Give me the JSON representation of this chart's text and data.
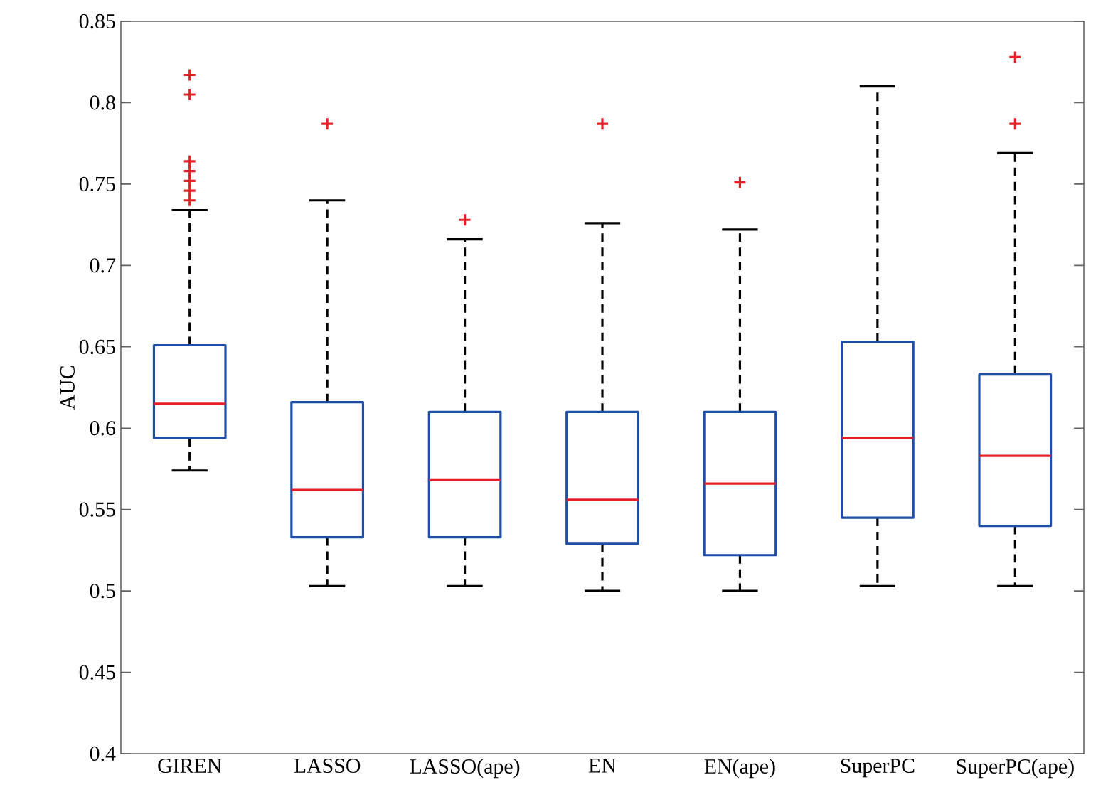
{
  "chart_data": {
    "type": "box",
    "ylabel": "AUC",
    "categories": [
      "GIREN",
      "LASSO",
      "LASSO(ape)",
      "EN",
      "EN(ape)",
      "SuperPC",
      "SuperPC(ape)"
    ],
    "boxes": [
      {
        "low": 0.574,
        "q1": 0.594,
        "median": 0.615,
        "q3": 0.651,
        "high": 0.734,
        "outliers": [
          0.817,
          0.805,
          0.764,
          0.758,
          0.752,
          0.746,
          0.74
        ]
      },
      {
        "low": 0.503,
        "q1": 0.533,
        "median": 0.562,
        "q3": 0.616,
        "high": 0.74,
        "outliers": [
          0.787
        ]
      },
      {
        "low": 0.503,
        "q1": 0.533,
        "median": 0.568,
        "q3": 0.61,
        "high": 0.716,
        "outliers": [
          0.728
        ]
      },
      {
        "low": 0.5,
        "q1": 0.529,
        "median": 0.556,
        "q3": 0.61,
        "high": 0.726,
        "outliers": [
          0.787
        ]
      },
      {
        "low": 0.5,
        "q1": 0.522,
        "median": 0.566,
        "q3": 0.61,
        "high": 0.722,
        "outliers": [
          0.751
        ]
      },
      {
        "low": 0.503,
        "q1": 0.545,
        "median": 0.594,
        "q3": 0.653,
        "high": 0.81
      },
      {
        "low": 0.503,
        "q1": 0.54,
        "median": 0.583,
        "q3": 0.633,
        "high": 0.769,
        "outliers": [
          0.828,
          0.787
        ]
      }
    ],
    "color": "#1f4ea6",
    "ylim": [
      0.4,
      0.85
    ],
    "yticks": [
      0.4,
      0.45,
      0.5,
      0.55,
      0.6,
      0.65,
      0.7,
      0.75,
      0.8,
      0.85
    ],
    "grid": false
  }
}
